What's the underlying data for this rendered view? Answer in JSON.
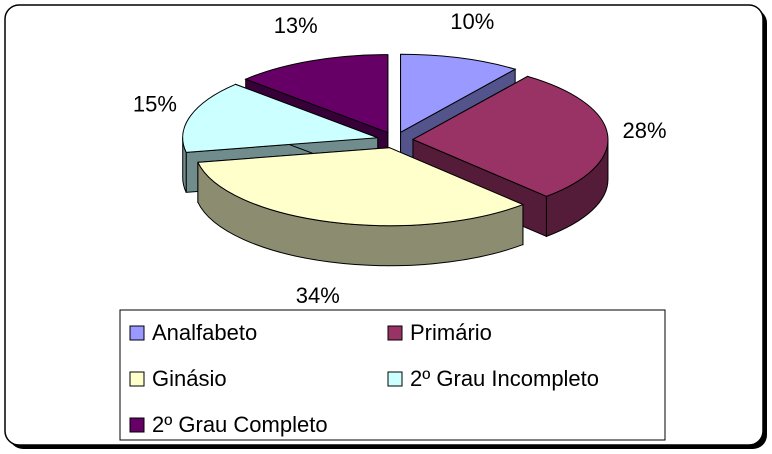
{
  "chart_data": {
    "type": "pie",
    "categories": [
      "Analfabeto",
      "Primário",
      "Ginásio",
      "2º Grau Incompleto",
      "2º Grau Completo"
    ],
    "values": [
      10,
      28,
      34,
      15,
      13
    ],
    "value_labels": [
      "10%",
      "28%",
      "34%",
      "15%",
      "13%"
    ],
    "colors": [
      "#9999ff",
      "#993366",
      "#ffffcc",
      "#ccffff",
      "#660066"
    ],
    "legend": "bottom"
  }
}
